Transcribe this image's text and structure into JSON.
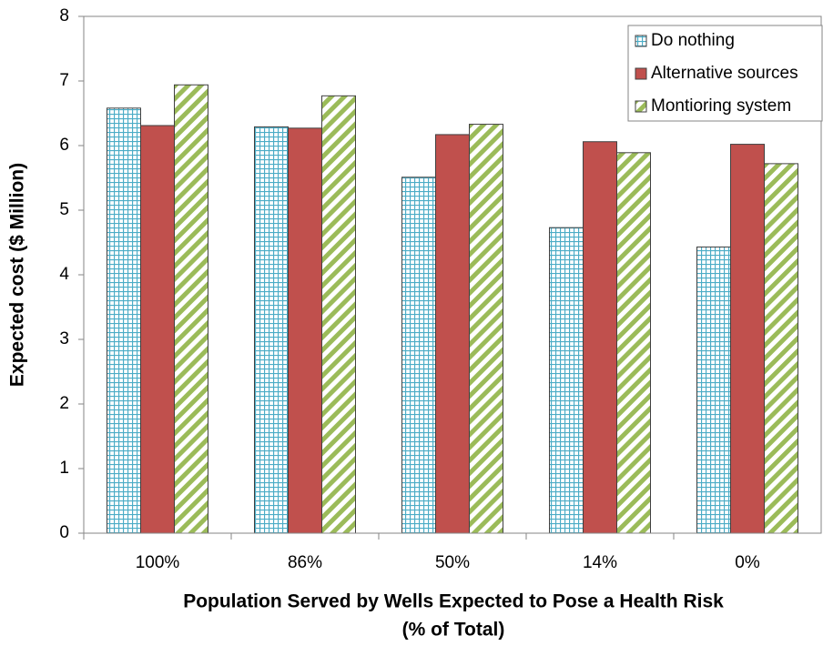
{
  "chart_data": {
    "type": "bar",
    "ylabel": "Expected cost ($ Million)",
    "xlabel": [
      "Population Served by Wells Expected to Pose a Health Risk",
      "(% of Total)"
    ],
    "categories": [
      "100%",
      "86%",
      "50%",
      "14%",
      "0%"
    ],
    "series": [
      {
        "name": "Do nothing",
        "color": "#4bacc6",
        "pattern": "grid",
        "values": [
          6.58,
          6.29,
          5.51,
          4.73,
          4.43
        ]
      },
      {
        "name": "Alternative sources",
        "color": "#c0504d",
        "pattern": "solid",
        "values": [
          6.31,
          6.27,
          6.17,
          6.06,
          6.02
        ]
      },
      {
        "name": "Montioring system",
        "color": "#9bbb59",
        "pattern": "hatch",
        "values": [
          6.94,
          6.77,
          6.33,
          5.89,
          5.72
        ]
      }
    ],
    "ylim": [
      0,
      8
    ],
    "yticks": [
      0,
      1,
      2,
      3,
      4,
      5,
      6,
      7,
      8
    ],
    "grid": false,
    "legend": "upper right"
  }
}
